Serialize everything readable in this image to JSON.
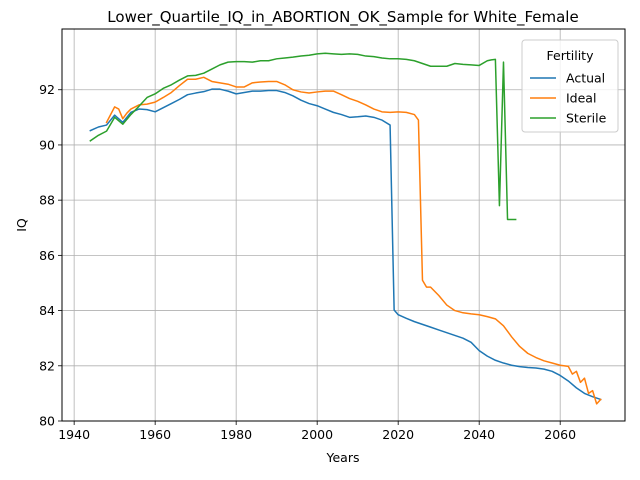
{
  "chart_data": {
    "type": "line",
    "title": "Lower_Quartile_IQ_in_ABORTION_OK_Sample for White_Female",
    "xlabel": "Years",
    "ylabel": "IQ",
    "xlim": [
      1937,
      2076
    ],
    "ylim": [
      80.0,
      94.2
    ],
    "xticks": [
      1940,
      1960,
      1980,
      2000,
      2020,
      2040,
      2060
    ],
    "yticks": [
      80,
      82,
      84,
      86,
      88,
      90,
      92
    ],
    "grid": true,
    "legend": {
      "title": "Fertility",
      "placement": "top-right"
    },
    "series": [
      {
        "name": "Actual",
        "color": "#1f77b4",
        "x": [
          1944,
          1946,
          1948,
          1950,
          1952,
          1954,
          1956,
          1958,
          1960,
          1962,
          1964,
          1966,
          1968,
          1970,
          1972,
          1974,
          1976,
          1978,
          1980,
          1982,
          1984,
          1986,
          1988,
          1990,
          1992,
          1994,
          1996,
          1998,
          2000,
          2002,
          2004,
          2006,
          2008,
          2010,
          2012,
          2014,
          2016,
          2018,
          2019,
          2020,
          2022,
          2024,
          2026,
          2028,
          2030,
          2032,
          2034,
          2036,
          2038,
          2040,
          2042,
          2044,
          2046,
          2048,
          2050,
          2052,
          2054,
          2056,
          2058,
          2060,
          2062,
          2064,
          2066,
          2068,
          2070
        ],
        "values": [
          90.52,
          90.65,
          90.72,
          91.08,
          90.82,
          91.18,
          91.3,
          91.28,
          91.2,
          91.35,
          91.5,
          91.65,
          91.82,
          91.88,
          91.93,
          92.02,
          92.02,
          91.95,
          91.85,
          91.9,
          91.95,
          91.95,
          91.97,
          91.97,
          91.9,
          91.78,
          91.62,
          91.5,
          91.42,
          91.3,
          91.18,
          91.1,
          91.0,
          91.02,
          91.05,
          91.0,
          90.9,
          90.72,
          84.02,
          83.85,
          83.72,
          83.6,
          83.5,
          83.4,
          83.3,
          83.2,
          83.1,
          83.0,
          82.85,
          82.55,
          82.35,
          82.2,
          82.1,
          82.02,
          81.97,
          81.94,
          81.92,
          81.88,
          81.8,
          81.65,
          81.45,
          81.2,
          81.0,
          80.88,
          80.78
        ]
      },
      {
        "name": "Ideal",
        "color": "#ff7f0e",
        "x": [
          1948,
          1950,
          1951,
          1952,
          1953,
          1954,
          1956,
          1958,
          1960,
          1962,
          1964,
          1966,
          1968,
          1970,
          1972,
          1974,
          1976,
          1978,
          1980,
          1982,
          1984,
          1986,
          1988,
          1990,
          1992,
          1994,
          1996,
          1998,
          2000,
          2002,
          2004,
          2006,
          2008,
          2010,
          2012,
          2014,
          2016,
          2018,
          2020,
          2022,
          2024,
          2025,
          2026,
          2027,
          2028,
          2030,
          2032,
          2034,
          2036,
          2038,
          2040,
          2042,
          2044,
          2046,
          2048,
          2050,
          2052,
          2054,
          2056,
          2058,
          2060,
          2062,
          2063,
          2064,
          2065,
          2066,
          2067,
          2068,
          2069,
          2070
        ],
        "values": [
          90.82,
          91.38,
          91.3,
          90.95,
          91.15,
          91.3,
          91.45,
          91.48,
          91.55,
          91.72,
          91.9,
          92.15,
          92.38,
          92.38,
          92.45,
          92.3,
          92.25,
          92.2,
          92.1,
          92.1,
          92.25,
          92.28,
          92.3,
          92.3,
          92.18,
          92.0,
          91.92,
          91.88,
          91.92,
          91.95,
          91.95,
          91.82,
          91.68,
          91.58,
          91.45,
          91.3,
          91.2,
          91.18,
          91.2,
          91.18,
          91.1,
          90.9,
          85.1,
          84.85,
          84.85,
          84.55,
          84.2,
          84.0,
          83.92,
          83.88,
          83.85,
          83.78,
          83.7,
          83.45,
          83.05,
          82.7,
          82.45,
          82.3,
          82.18,
          82.1,
          82.02,
          81.98,
          81.7,
          81.8,
          81.4,
          81.55,
          81.0,
          81.1,
          80.62,
          80.78
        ]
      },
      {
        "name": "Sterile",
        "color": "#2ca02c",
        "x": [
          1944,
          1946,
          1948,
          1950,
          1952,
          1954,
          1956,
          1958,
          1960,
          1962,
          1964,
          1966,
          1968,
          1970,
          1972,
          1974,
          1976,
          1978,
          1980,
          1982,
          1984,
          1986,
          1988,
          1990,
          1992,
          1994,
          1996,
          1998,
          2000,
          2002,
          2004,
          2006,
          2008,
          2010,
          2012,
          2014,
          2016,
          2018,
          2020,
          2022,
          2024,
          2026,
          2028,
          2030,
          2032,
          2034,
          2036,
          2038,
          2040,
          2042,
          2043,
          2044,
          2045,
          2046,
          2047,
          2049
        ],
        "values": [
          90.15,
          90.35,
          90.5,
          91.0,
          90.75,
          91.1,
          91.4,
          91.72,
          91.85,
          92.05,
          92.18,
          92.35,
          92.5,
          92.52,
          92.6,
          92.75,
          92.9,
          93.0,
          93.02,
          93.02,
          93.0,
          93.05,
          93.05,
          93.12,
          93.15,
          93.18,
          93.22,
          93.25,
          93.3,
          93.32,
          93.3,
          93.28,
          93.3,
          93.28,
          93.22,
          93.2,
          93.15,
          93.12,
          93.12,
          93.1,
          93.05,
          92.95,
          92.85,
          92.85,
          92.85,
          92.95,
          92.92,
          92.9,
          92.88,
          93.05,
          93.08,
          93.1,
          87.8,
          93.0,
          87.3,
          87.3
        ]
      }
    ]
  }
}
